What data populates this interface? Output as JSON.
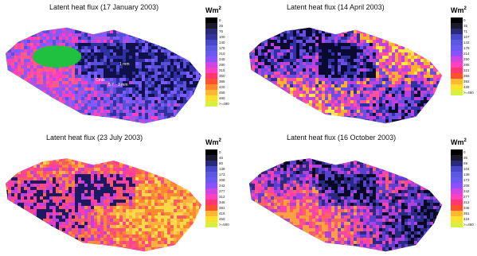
{
  "panels": [
    {
      "title": "Latent heat flux (17 January 2003)",
      "unit_label": "Wm",
      "unit_sup": "2",
      "palette": [
        "#10104a",
        "#3030a0",
        "#5a4fd8",
        "#7c5cff",
        "#b24fe0",
        "#ff40c0",
        "#ff5a8a",
        "#20c040"
      ],
      "annotations": [
        "1 mm",
        "Cmts",
        "5.7",
        "3 mm"
      ]
    },
    {
      "title": "Latent heat flux (14 April 2003)",
      "unit_label": "Wm",
      "unit_sup": "2",
      "palette": [
        "#0a0a30",
        "#3030a0",
        "#6a4fe0",
        "#c040e0",
        "#ff50a0",
        "#ffb030",
        "#ffe84a",
        "#d8d040"
      ],
      "annotations": []
    },
    {
      "title": "Latent heat flux (23 July 2003)",
      "unit_label": "Wm",
      "unit_sup": "2",
      "palette": [
        "#1a1a60",
        "#c040e0",
        "#ff40a0",
        "#ff5a60",
        "#ff8a30",
        "#ffb040",
        "#ffd84a",
        "#30c040"
      ],
      "annotations": []
    },
    {
      "title": "Latent heat flux (16 October 2003)",
      "unit_label": "Wm",
      "unit_sup": "2",
      "palette": [
        "#080820",
        "#2a2a80",
        "#5a40d0",
        "#b040e0",
        "#ff40b0",
        "#ff6060",
        "#ffa040",
        "#ffd050"
      ],
      "annotations": []
    }
  ],
  "legend_colors": [
    "#000000",
    "#1a1a2a",
    "#2a2a7a",
    "#34349a",
    "#4848c8",
    "#5a5ae0",
    "#6a5af0",
    "#8a52ff",
    "#b04cf0",
    "#d044e0",
    "#ff40c0",
    "#ff3870",
    "#ff5030",
    "#ff8830",
    "#ffb830",
    "#ffe030",
    "#d8f040"
  ],
  "legend_labels": [
    [
      "0",
      "25",
      "75",
      "100",
      "140",
      "175",
      "210",
      "245",
      "280",
      "315",
      "350",
      "385",
      "420",
      "455",
      "480",
      ">=490"
    ],
    [
      "0",
      "35",
      "71",
      "107",
      "142",
      "178",
      "214",
      "250",
      "285",
      "321",
      "356",
      "392",
      "428",
      ">=460"
    ],
    [
      "0",
      "46",
      "80",
      "138",
      "173",
      "208",
      "242",
      "277",
      "312",
      "346",
      "381",
      "416",
      "450",
      ">=500"
    ],
    [
      "0",
      "35",
      "69",
      "104",
      "138",
      "173",
      "208",
      "242",
      "277",
      "312",
      "346",
      "381",
      "416",
      ">=450"
    ]
  ]
}
